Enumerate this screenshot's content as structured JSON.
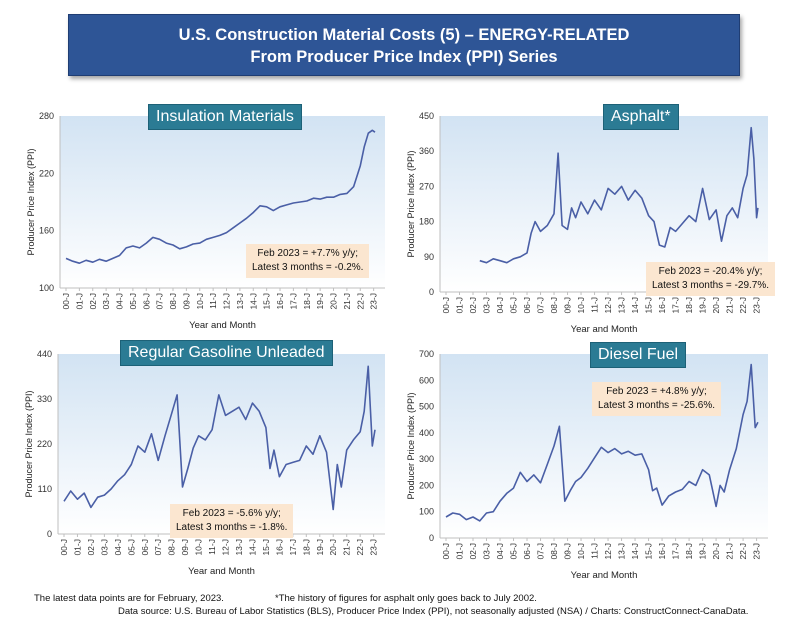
{
  "header": {
    "title_line1": "U.S. Construction Material Costs (5) – ENERGY-RELATED",
    "title_line2": "From Producer Price Index (PPI) Series"
  },
  "footer": {
    "note_left": "The latest data points are for February, 2023.",
    "note_right": "*The history of figures for asphalt only goes back to July 2002.",
    "source": "Data source: U.S. Bureau of Labor Statistics (BLS), Producer Price Index (PPI), not seasonally adjusted (NSA) / Charts: ConstructConnect-CanaData."
  },
  "colors": {
    "banner": "#2e5596",
    "title_box": "#2b7b94",
    "line": "#4a5fa6",
    "note_box": "#fbe6d0"
  },
  "chart_data": [
    {
      "id": "insulation",
      "type": "line",
      "title": "Insulation Materials",
      "xlabel": "Year and Month",
      "ylabel": "Producer Price Index (PPI)",
      "ylim": [
        100,
        280
      ],
      "yticks": [
        "100",
        "160",
        "220",
        "280"
      ],
      "yticks_v": [
        100,
        160,
        220,
        280
      ],
      "xticks": [
        "00-J",
        "01-J",
        "02-J",
        "03-J",
        "04-J",
        "05-J",
        "06-J",
        "07-J",
        "08-J",
        "09-J",
        "10-J",
        "11-J",
        "12-J",
        "13-J",
        "14-J",
        "15-J",
        "16-J",
        "17-J",
        "18-J",
        "19-J",
        "20-J",
        "21-J",
        "22-J",
        "23-J"
      ],
      "note_line1": "Feb 2023 = +7.7% y/y;",
      "note_line2": "Latest 3 months = -0.2%.",
      "series": [
        {
          "name": "PPI",
          "x": [
            0,
            0.5,
            1,
            1.5,
            2,
            2.5,
            3,
            3.5,
            4,
            4.5,
            5,
            5.5,
            6,
            6.5,
            7,
            7.5,
            8,
            8.5,
            9,
            9.5,
            10,
            10.5,
            11,
            11.5,
            12,
            12.5,
            13,
            13.5,
            14,
            14.5,
            15,
            15.5,
            16,
            16.5,
            17,
            17.5,
            18,
            18.5,
            19,
            19.5,
            20,
            20.5,
            21,
            21.5,
            22,
            22.3,
            22.6,
            22.9,
            23.1
          ],
          "values": [
            131,
            128,
            126,
            129,
            127,
            130,
            128,
            131,
            134,
            142,
            144,
            142,
            147,
            153,
            151,
            147,
            145,
            141,
            143,
            146,
            147,
            151,
            153,
            155,
            158,
            163,
            168,
            173,
            179,
            186,
            185,
            181,
            185,
            187,
            189,
            190,
            191,
            194,
            193,
            195,
            195,
            198,
            199,
            206,
            228,
            248,
            262,
            265,
            263
          ]
        }
      ]
    },
    {
      "id": "asphalt",
      "type": "line",
      "title": "Asphalt*",
      "xlabel": "Year and Month",
      "ylabel": "Producer Price Index (PPI)",
      "ylim": [
        0,
        450
      ],
      "yticks": [
        "0",
        "90",
        "180",
        "270",
        "360",
        "450"
      ],
      "yticks_v": [
        0,
        90,
        180,
        270,
        360,
        450
      ],
      "xticks": [
        "00-J",
        "01-J",
        "02-J",
        "03-J",
        "04-J",
        "05-J",
        "06-J",
        "07-J",
        "08-J",
        "09-J",
        "10-J",
        "11-J",
        "12-J",
        "13-J",
        "14-J",
        "15-J",
        "16-J",
        "17-J",
        "18-J",
        "19-J",
        "20-J",
        "21-J",
        "22-J",
        "23-J"
      ],
      "note_line1": "Feb 2023 = -20.4% y/y;",
      "note_line2": "Latest 3 months = -29.7%.",
      "series": [
        {
          "name": "PPI",
          "x": [
            2.5,
            3,
            3.5,
            4,
            4.5,
            5,
            5.5,
            6,
            6.3,
            6.6,
            7,
            7.5,
            8,
            8.3,
            8.6,
            9,
            9.3,
            9.6,
            10,
            10.5,
            11,
            11.5,
            12,
            12.5,
            13,
            13.5,
            14,
            14.5,
            15,
            15.4,
            15.8,
            16.2,
            16.6,
            17,
            17.5,
            18,
            18.5,
            19,
            19.5,
            20,
            20.4,
            20.8,
            21.2,
            21.6,
            22,
            22.3,
            22.6,
            22.8,
            23,
            23.1
          ],
          "values": [
            80,
            75,
            85,
            80,
            75,
            85,
            90,
            100,
            150,
            180,
            155,
            170,
            200,
            355,
            170,
            160,
            215,
            190,
            230,
            200,
            235,
            210,
            265,
            250,
            270,
            235,
            260,
            240,
            195,
            180,
            120,
            115,
            165,
            155,
            175,
            195,
            180,
            265,
            185,
            210,
            130,
            195,
            215,
            190,
            265,
            300,
            420,
            340,
            190,
            215
          ]
        }
      ]
    },
    {
      "id": "gasoline",
      "type": "line",
      "title": "Regular Gasoline Unleaded",
      "xlabel": "Year and Month",
      "ylabel": "Producer Price Index (PPI)",
      "ylim": [
        0,
        440
      ],
      "yticks": [
        "0",
        "110",
        "220",
        "330",
        "440"
      ],
      "yticks_v": [
        0,
        110,
        220,
        330,
        440
      ],
      "xticks": [
        "00-J",
        "01-J",
        "02-J",
        "03-J",
        "04-J",
        "05-J",
        "06-J",
        "07-J",
        "08-J",
        "09-J",
        "10-J",
        "11-J",
        "12-J",
        "13-J",
        "14-J",
        "15-J",
        "16-J",
        "17-J",
        "18-J",
        "19-J",
        "20-J",
        "21-J",
        "22-J",
        "23-J"
      ],
      "note_line1": "Feb 2023 = -5.6% y/y;",
      "note_line2": "Latest 3 months = -1.8%.",
      "series": [
        {
          "name": "PPI",
          "x": [
            0,
            0.5,
            1,
            1.5,
            2,
            2.5,
            3,
            3.5,
            4,
            4.5,
            5,
            5.5,
            6,
            6.5,
            7,
            7.5,
            8,
            8.4,
            8.8,
            9.2,
            9.6,
            10,
            10.5,
            11,
            11.5,
            12,
            12.5,
            13,
            13.5,
            14,
            14.5,
            15,
            15.3,
            15.6,
            16,
            16.5,
            17,
            17.5,
            18,
            18.5,
            19,
            19.5,
            20,
            20.3,
            20.6,
            21,
            21.5,
            22,
            22.3,
            22.6,
            22.9,
            23.1
          ],
          "values": [
            80,
            105,
            85,
            100,
            65,
            90,
            95,
            110,
            130,
            145,
            170,
            215,
            200,
            245,
            180,
            240,
            295,
            340,
            115,
            160,
            210,
            240,
            230,
            255,
            340,
            290,
            300,
            310,
            280,
            320,
            300,
            260,
            160,
            205,
            140,
            170,
            175,
            180,
            215,
            195,
            240,
            200,
            60,
            170,
            115,
            205,
            230,
            250,
            300,
            410,
            215,
            255
          ]
        }
      ]
    },
    {
      "id": "diesel",
      "type": "line",
      "title": "Diesel Fuel",
      "xlabel": "Year and Month",
      "ylabel": "Producer Price Index (PPI)",
      "ylim": [
        0,
        700
      ],
      "yticks": [
        "0",
        "100",
        "200",
        "300",
        "400",
        "500",
        "600",
        "700"
      ],
      "yticks_v": [
        0,
        100,
        200,
        300,
        400,
        500,
        600,
        700
      ],
      "xticks": [
        "00-J",
        "01-J",
        "02-J",
        "03-J",
        "04-J",
        "05-J",
        "06-J",
        "07-J",
        "08-J",
        "09-J",
        "10-J",
        "11-J",
        "12-J",
        "13-J",
        "14-J",
        "15-J",
        "16-J",
        "17-J",
        "18-J",
        "19-J",
        "20-J",
        "21-J",
        "22-J",
        "23-J"
      ],
      "note_line1": "Feb 2023 = +4.8% y/y;",
      "note_line2": "Latest 3 months = -25.6%.",
      "series": [
        {
          "name": "PPI",
          "x": [
            0,
            0.5,
            1,
            1.5,
            2,
            2.5,
            3,
            3.5,
            4,
            4.5,
            5,
            5.5,
            6,
            6.5,
            7,
            7.5,
            8,
            8.4,
            8.8,
            9.2,
            9.6,
            10,
            10.5,
            11,
            11.5,
            12,
            12.5,
            13,
            13.5,
            14,
            14.5,
            15,
            15.3,
            15.6,
            16,
            16.5,
            17,
            17.5,
            18,
            18.5,
            19,
            19.5,
            20,
            20.3,
            20.6,
            21,
            21.5,
            22,
            22.3,
            22.6,
            22.9,
            23.1
          ],
          "values": [
            80,
            95,
            90,
            70,
            80,
            65,
            95,
            100,
            140,
            170,
            190,
            250,
            215,
            240,
            210,
            280,
            350,
            425,
            140,
            180,
            215,
            230,
            265,
            305,
            345,
            325,
            340,
            320,
            330,
            315,
            320,
            260,
            180,
            190,
            125,
            160,
            175,
            185,
            215,
            200,
            260,
            240,
            120,
            200,
            175,
            260,
            340,
            470,
            520,
            660,
            420,
            440
          ]
        }
      ]
    }
  ]
}
